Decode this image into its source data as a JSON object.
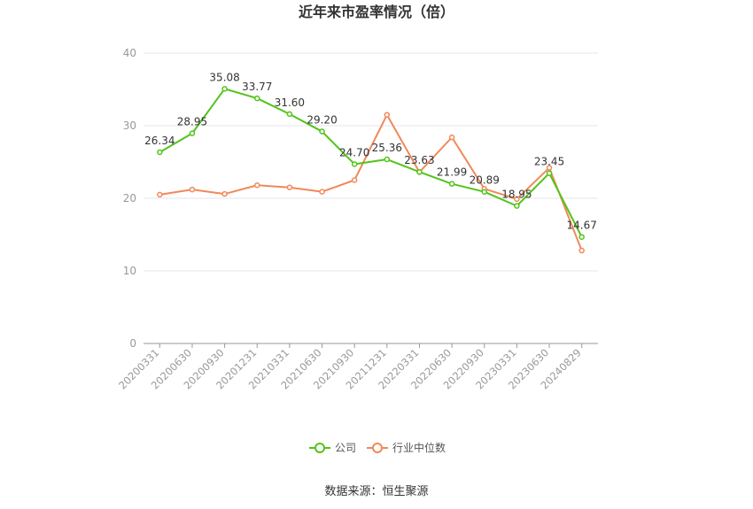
{
  "chart_data": {
    "type": "line",
    "title": "近年来市盈率情况（倍）",
    "categories": [
      "20200331",
      "20200630",
      "20200930",
      "20201231",
      "20210331",
      "20210630",
      "20210930",
      "20211231",
      "20220331",
      "20220630",
      "20220930",
      "20230331",
      "20230630",
      "20240829"
    ],
    "ylim": [
      0,
      40
    ],
    "yticks": [
      0,
      10,
      20,
      30,
      40
    ],
    "grid": true,
    "legend_position": "bottom",
    "series": [
      {
        "name": "公司",
        "color": "#52c41a",
        "values": [
          26.34,
          28.95,
          35.08,
          33.77,
          31.6,
          29.2,
          24.7,
          25.36,
          23.63,
          21.99,
          20.89,
          18.95,
          23.45,
          14.67
        ],
        "labels": [
          "26.34",
          "28.95",
          "35.08",
          "33.77",
          "31.60",
          "29.20",
          "24.70",
          "25.36",
          "23.63",
          "21.99",
          "20.89",
          "18.95",
          "23.45",
          "14.67"
        ]
      },
      {
        "name": "行业中位数",
        "color": "#f0895a",
        "values": [
          20.5,
          21.2,
          20.6,
          21.8,
          21.5,
          20.9,
          22.5,
          31.5,
          23.6,
          28.4,
          21.3,
          19.9,
          24.2,
          12.8
        ]
      }
    ]
  },
  "footer": {
    "source": "数据来源：恒生聚源"
  }
}
